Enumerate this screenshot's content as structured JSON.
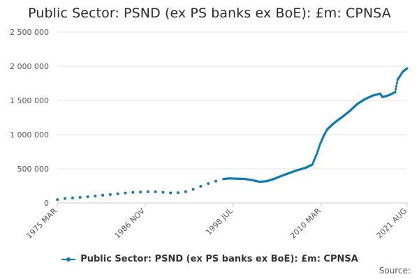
{
  "chart_data": {
    "type": "line",
    "title": "Public Sector: PSND (ex PS banks ex BoE): £m: CPNSA",
    "xlabel": "",
    "ylabel": "",
    "ylim": [
      0,
      2500000
    ],
    "xlim": [
      1975.17,
      2021.58
    ],
    "y_ticks": [
      0,
      500000,
      1000000,
      1500000,
      2000000,
      2500000
    ],
    "y_tick_labels": [
      "0",
      "500 000",
      "1 000 000",
      "1 500 000",
      "2 000 000",
      "2 500 000"
    ],
    "x_ticks": [
      1975.17,
      1986.83,
      1998.5,
      2010.17,
      2021.58
    ],
    "x_tick_labels": [
      "1975 MAR",
      "1986 NOV",
      "1998 JUL",
      "2010 MAR",
      "2021 AUG"
    ],
    "grid": "horizontal",
    "legend_position": "bottom",
    "series": [
      {
        "name": "Public Sector: PSND (ex PS banks ex BoE): £m: CPNSA",
        "color": "#0f7bb0",
        "annual_points": [
          [
            1975.2,
            50000
          ],
          [
            1976.2,
            65000
          ],
          [
            1977.2,
            74000
          ],
          [
            1978.2,
            82000
          ],
          [
            1979.2,
            90000
          ],
          [
            1980.2,
            102000
          ],
          [
            1981.2,
            113000
          ],
          [
            1982.2,
            122000
          ],
          [
            1983.2,
            134000
          ],
          [
            1984.2,
            145000
          ],
          [
            1985.2,
            155000
          ],
          [
            1986.2,
            160000
          ],
          [
            1987.2,
            165000
          ],
          [
            1988.2,
            163000
          ],
          [
            1989.2,
            155000
          ],
          [
            1990.2,
            148000
          ],
          [
            1991.2,
            150000
          ],
          [
            1992.2,
            165000
          ],
          [
            1993.2,
            200000
          ],
          [
            1994.2,
            245000
          ],
          [
            1995.2,
            285000
          ],
          [
            1996.2,
            320000
          ]
        ],
        "monthly_points": [
          [
            1997.2,
            350000
          ],
          [
            1998.0,
            360000
          ],
          [
            1999.0,
            355000
          ],
          [
            2000.0,
            352000
          ],
          [
            2001.0,
            335000
          ],
          [
            2002.0,
            310000
          ],
          [
            2003.0,
            320000
          ],
          [
            2004.0,
            355000
          ],
          [
            2005.0,
            400000
          ],
          [
            2006.0,
            440000
          ],
          [
            2007.0,
            480000
          ],
          [
            2008.0,
            510000
          ],
          [
            2009.0,
            560000
          ],
          [
            2009.6,
            720000
          ],
          [
            2010.0,
            850000
          ],
          [
            2010.5,
            980000
          ],
          [
            2011.0,
            1080000
          ],
          [
            2012.0,
            1180000
          ],
          [
            2013.0,
            1260000
          ],
          [
            2014.0,
            1350000
          ],
          [
            2015.0,
            1450000
          ],
          [
            2016.0,
            1520000
          ],
          [
            2017.0,
            1570000
          ],
          [
            2018.0,
            1600000
          ],
          [
            2018.3,
            1550000
          ],
          [
            2019.0,
            1570000
          ],
          [
            2020.0,
            1620000
          ],
          [
            2020.3,
            1800000
          ],
          [
            2021.0,
            1920000
          ],
          [
            2021.58,
            1970000
          ]
        ]
      }
    ],
    "legend_label": "Public Sector: PSND (ex PS banks ex BoE): £m: CPNSA",
    "source_label": "Source:"
  }
}
